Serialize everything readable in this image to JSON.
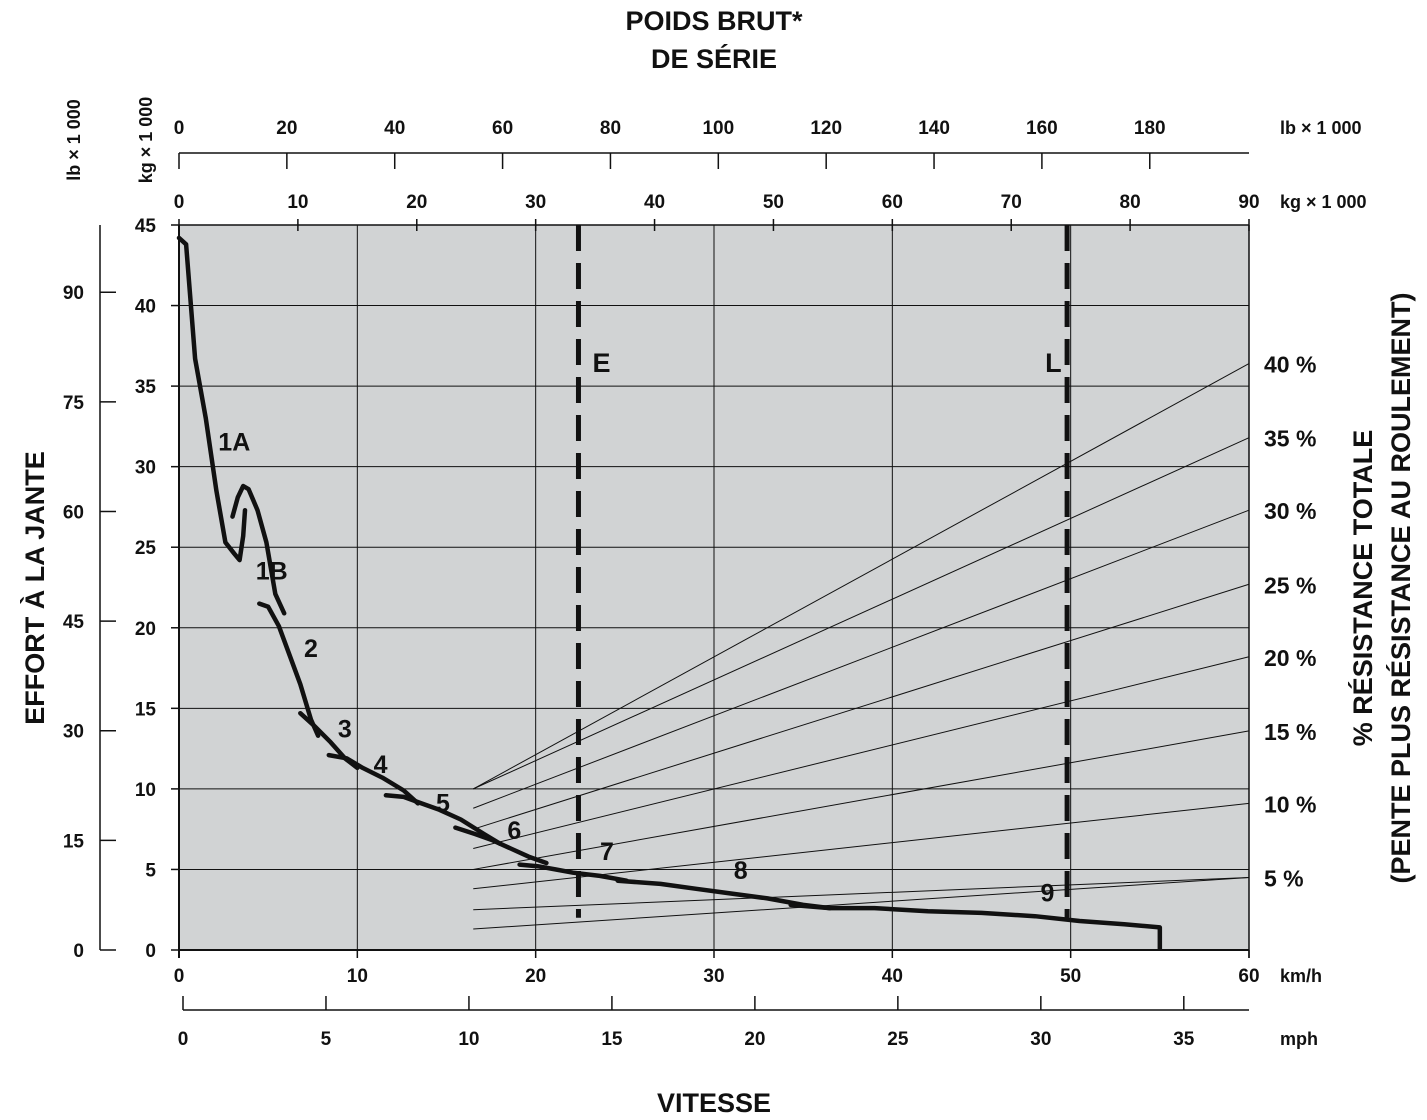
{
  "chart_data": {
    "type": "line",
    "title_line1": "POIDS BRUT*",
    "title_line2": "DE SÉRIE",
    "xlabel": "VITESSE",
    "ylabel_left": "EFFORT À LA JANTE",
    "ylabel_right_line1": "% RÉSISTANCE TOTALE",
    "ylabel_right_line2": "(PENTE PLUS RÉSISTANCE AU ROULEMENT)",
    "grid": true,
    "x_kmh": {
      "unit": "km/h",
      "range": [
        0,
        60
      ],
      "ticks": [
        "0",
        "10",
        "20",
        "30",
        "40",
        "50",
        "60"
      ]
    },
    "x_mph": {
      "unit": "mph",
      "range": [
        0,
        37.28
      ],
      "ticks": [
        "0",
        "5",
        "10",
        "15",
        "20",
        "25",
        "30",
        "35"
      ]
    },
    "y_kg": {
      "range": [
        0,
        45
      ],
      "ticks": [
        "0",
        "5",
        "10",
        "15",
        "20",
        "25",
        "30",
        "35",
        "40",
        "45"
      ]
    },
    "y_lb": {
      "unit": "lb × 1 000",
      "range": [
        0,
        99.2
      ],
      "ticks": [
        "0",
        "15",
        "30",
        "45",
        "60",
        "75",
        "90"
      ]
    },
    "top_kg": {
      "unit": "kg × 1 000",
      "range": [
        0,
        90
      ],
      "ticks": [
        "0",
        "10",
        "20",
        "30",
        "40",
        "50",
        "60",
        "70",
        "80",
        "90"
      ]
    },
    "top_lb": {
      "unit": "lb × 1 000",
      "unit_left": "lb × 1 000",
      "unit_left_kg": "kg × 1 000",
      "range": [
        0,
        198.4
      ],
      "ticks": [
        "0",
        "20",
        "40",
        "60",
        "80",
        "100",
        "120",
        "140",
        "160",
        "180"
      ]
    },
    "vertical_markers": [
      {
        "label": "E",
        "x_kmh": 22.4
      },
      {
        "label": "L",
        "x_kmh": 49.8
      }
    ],
    "resistance_lines": [
      {
        "label": "",
        "y_start": 1.3,
        "y_end": 4.5
      },
      {
        "label": "5 %",
        "y_start": 2.5,
        "y_end": 4.5
      },
      {
        "label": "10 %",
        "y_start": 3.8,
        "y_end": 9.1
      },
      {
        "label": "15 %",
        "y_start": 5.0,
        "y_end": 13.6
      },
      {
        "label": "20 %",
        "y_start": 6.3,
        "y_end": 18.2
      },
      {
        "label": "25 %",
        "y_start": 7.5,
        "y_end": 22.7
      },
      {
        "label": "30 %",
        "y_start": 8.8,
        "y_end": 27.3
      },
      {
        "label": "35 %",
        "y_start": 10.0,
        "y_end": 31.8
      },
      {
        "label": "40 %",
        "y_start": 10.0,
        "y_end": 36.4
      }
    ],
    "resistance_line_x_start": 16.5,
    "series": [
      {
        "name": "1A",
        "points": [
          [
            0,
            44.2
          ],
          [
            0.4,
            43.8
          ],
          [
            0.9,
            36.7
          ],
          [
            1.5,
            33.0
          ],
          [
            2.1,
            28.5
          ],
          [
            2.6,
            25.3
          ],
          [
            3.1,
            24.6
          ],
          [
            3.4,
            24.2
          ],
          [
            3.6,
            25.7
          ],
          [
            3.7,
            27.3
          ]
        ]
      },
      {
        "name": "1B",
        "points": [
          [
            3.0,
            26.9
          ],
          [
            3.3,
            28.1
          ],
          [
            3.6,
            28.8
          ],
          [
            3.9,
            28.6
          ],
          [
            4.4,
            27.3
          ],
          [
            4.9,
            25.3
          ],
          [
            5.4,
            22.1
          ],
          [
            5.9,
            20.9
          ]
        ]
      },
      {
        "name": "2",
        "points": [
          [
            4.5,
            21.5
          ],
          [
            5.0,
            21.3
          ],
          [
            5.6,
            20.1
          ],
          [
            6.2,
            18.3
          ],
          [
            6.8,
            16.5
          ],
          [
            7.4,
            14.3
          ],
          [
            7.8,
            13.3
          ]
        ]
      },
      {
        "name": "3",
        "points": [
          [
            6.8,
            14.7
          ],
          [
            7.6,
            13.9
          ],
          [
            8.5,
            12.9
          ],
          [
            9.3,
            11.9
          ],
          [
            10.0,
            11.3
          ]
        ]
      },
      {
        "name": "4",
        "points": [
          [
            8.4,
            12.1
          ],
          [
            9.4,
            11.9
          ],
          [
            10.3,
            11.3
          ],
          [
            11.4,
            10.7
          ],
          [
            12.6,
            9.9
          ],
          [
            13.4,
            9.1
          ]
        ]
      },
      {
        "name": "5",
        "points": [
          [
            11.6,
            9.6
          ],
          [
            12.6,
            9.5
          ],
          [
            13.6,
            9.1
          ],
          [
            14.6,
            8.7
          ],
          [
            15.8,
            8.1
          ],
          [
            17.1,
            7.2
          ],
          [
            18.0,
            6.6
          ]
        ]
      },
      {
        "name": "6",
        "points": [
          [
            15.5,
            7.6
          ],
          [
            16.6,
            7.2
          ],
          [
            17.6,
            6.8
          ],
          [
            18.6,
            6.3
          ],
          [
            19.6,
            5.8
          ],
          [
            20.6,
            5.4
          ]
        ]
      },
      {
        "name": "7",
        "points": [
          [
            19.1,
            5.3
          ],
          [
            20.1,
            5.2
          ],
          [
            21.1,
            5.0
          ],
          [
            22.1,
            4.8
          ],
          [
            23.6,
            4.6
          ],
          [
            25.1,
            4.3
          ]
        ]
      },
      {
        "name": "8",
        "points": [
          [
            24.6,
            4.3
          ],
          [
            27.0,
            4.1
          ],
          [
            29.0,
            3.8
          ],
          [
            31.0,
            3.5
          ],
          [
            33.0,
            3.2
          ],
          [
            35.0,
            2.8
          ],
          [
            36.5,
            2.6
          ]
        ]
      },
      {
        "name": "9",
        "points": [
          [
            34.3,
            2.8
          ],
          [
            36.5,
            2.6
          ],
          [
            39.0,
            2.6
          ],
          [
            42.0,
            2.4
          ],
          [
            45.0,
            2.3
          ],
          [
            48.0,
            2.1
          ],
          [
            50.5,
            1.8
          ],
          [
            53.0,
            1.6
          ],
          [
            55.0,
            1.4
          ]
        ]
      }
    ]
  }
}
